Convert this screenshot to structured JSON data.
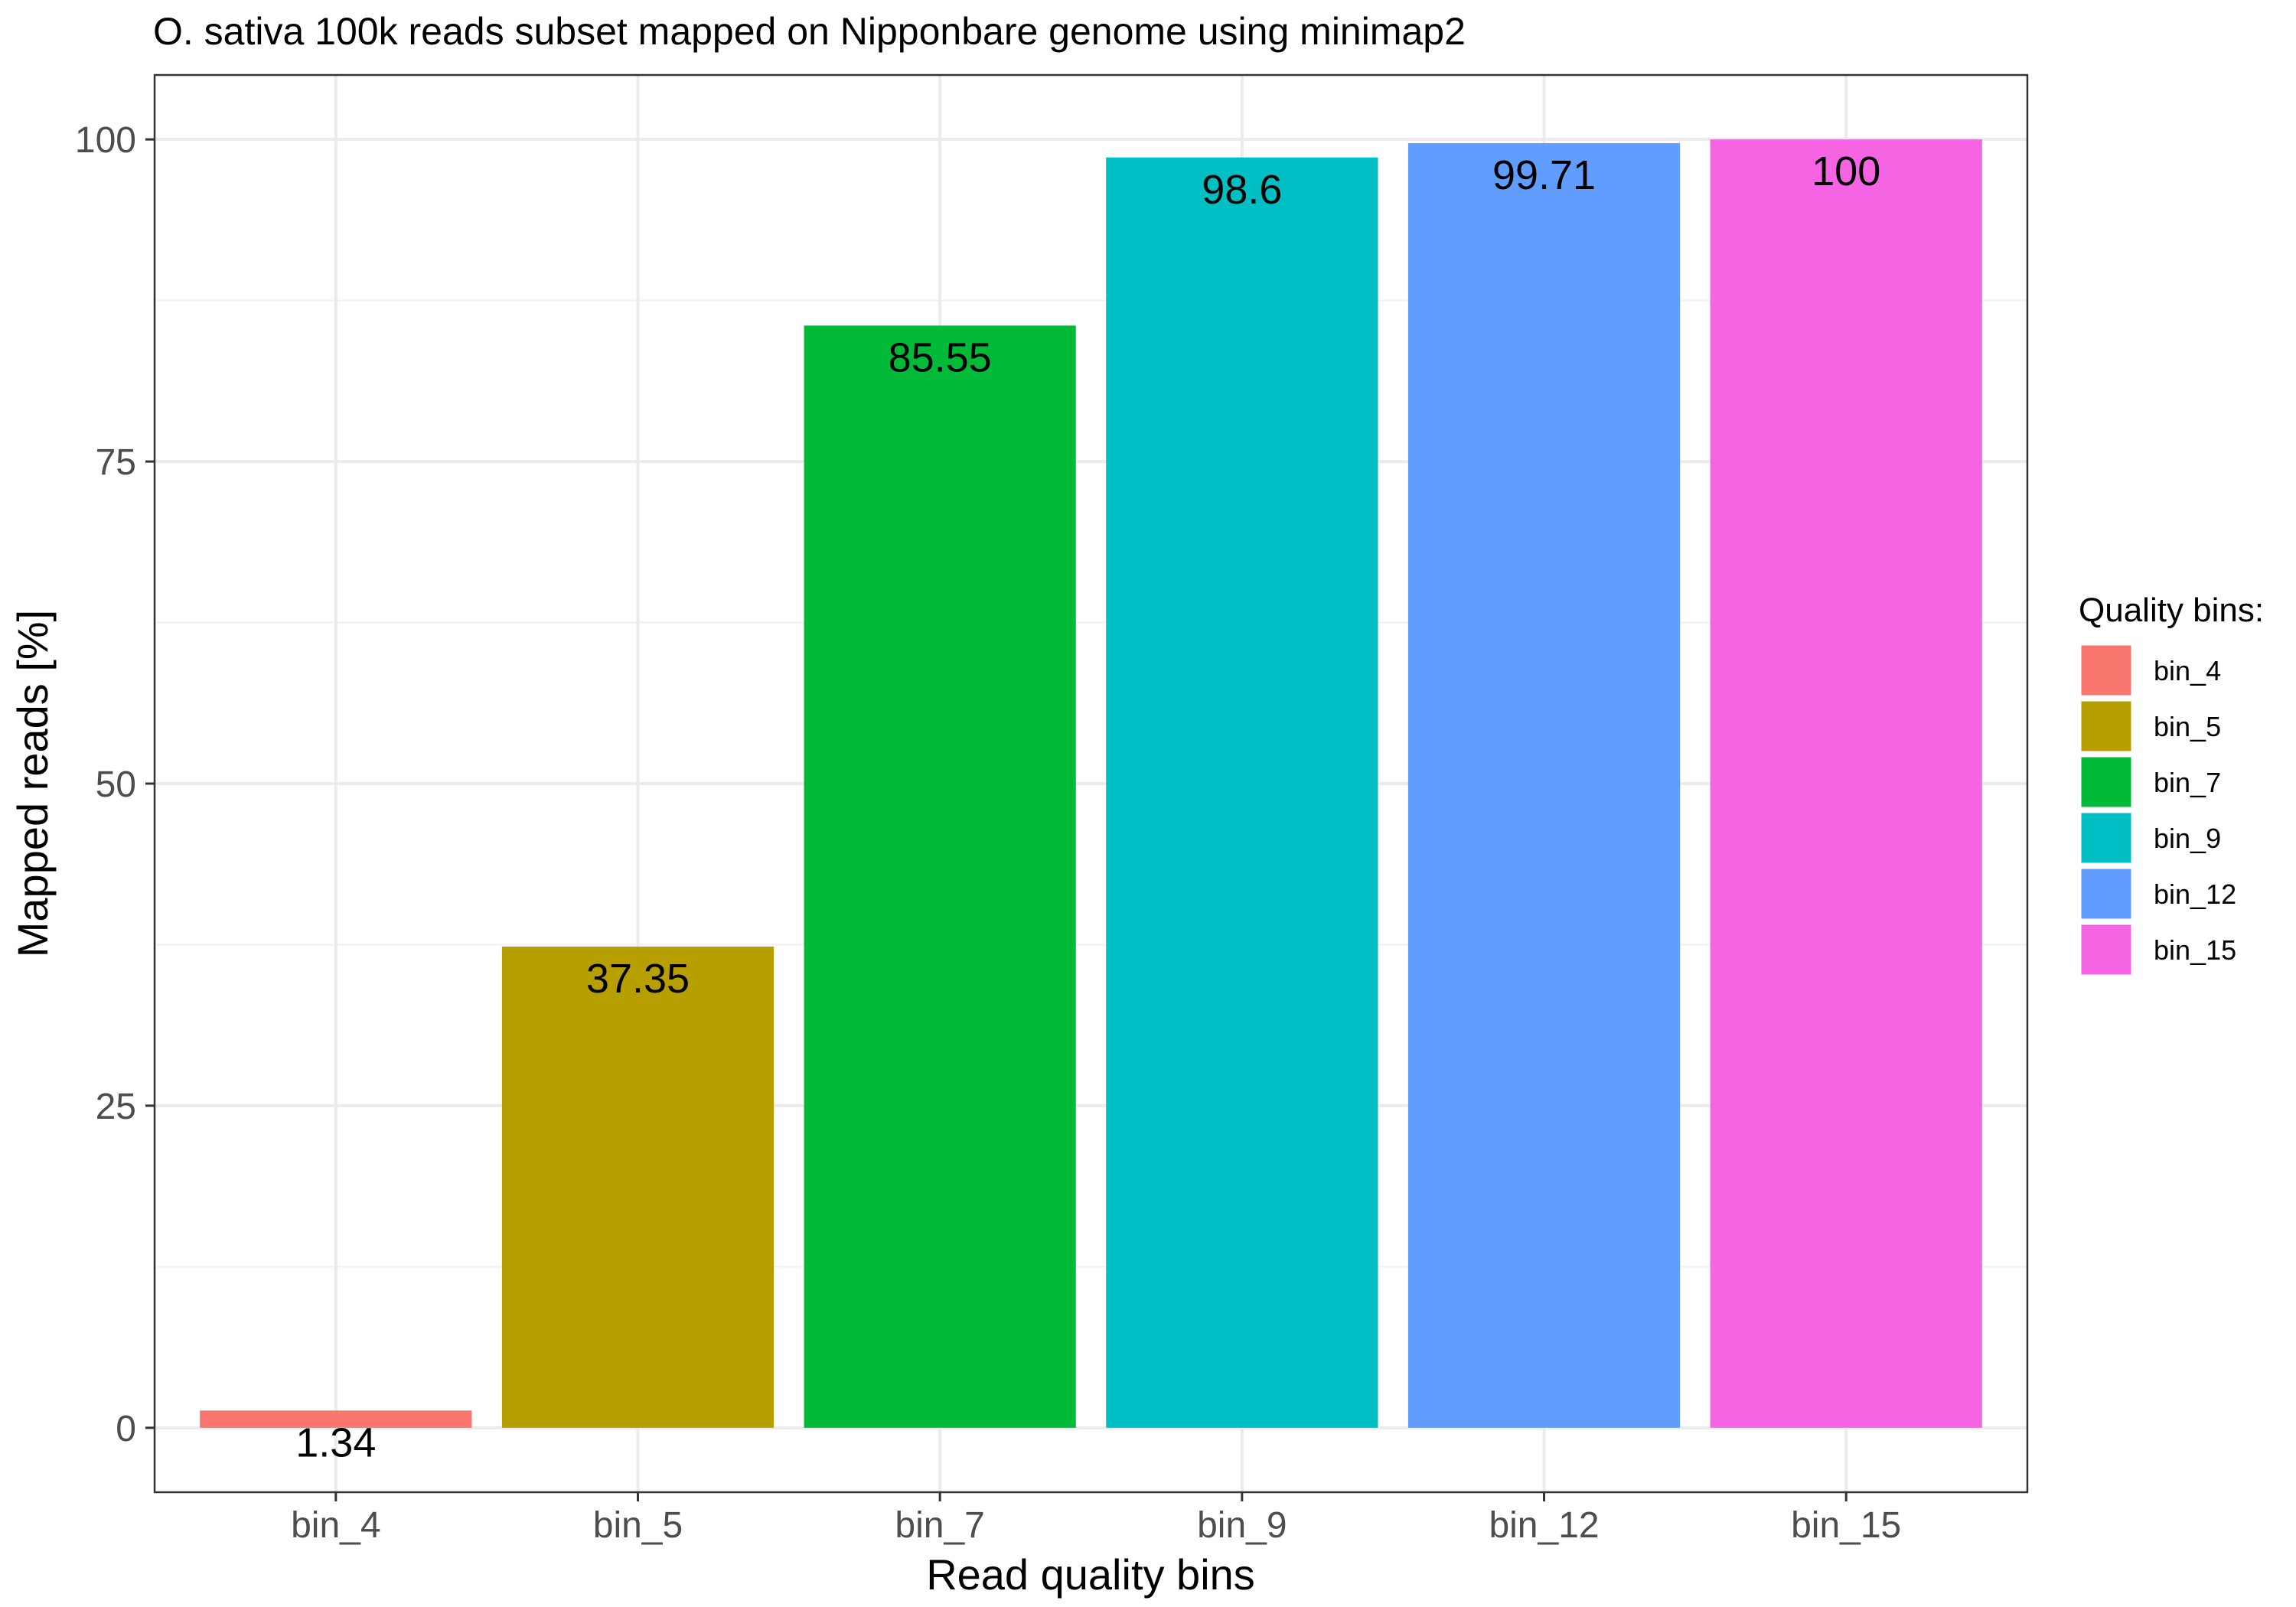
{
  "chart_data": {
    "type": "bar",
    "title": "O. sativa 100k reads subset mapped on Nipponbare genome using minimap2",
    "xlabel": "Read quality bins",
    "ylabel": "Mapped reads [%]",
    "categories": [
      "bin_4",
      "bin_5",
      "bin_7",
      "bin_9",
      "bin_12",
      "bin_15"
    ],
    "values": [
      1.34,
      37.35,
      85.55,
      98.6,
      99.71,
      100
    ],
    "data_labels": [
      "1.34",
      "37.35",
      "85.55",
      "98.6",
      "99.71",
      "100"
    ],
    "colors": [
      "#F8766D",
      "#B79F00",
      "#00BA38",
      "#00BFC4",
      "#619CFF",
      "#F564E3"
    ],
    "ylim": [
      -5,
      105
    ],
    "yticks": [
      0,
      25,
      50,
      75,
      100
    ],
    "ytick_labels": [
      "0",
      "25",
      "50",
      "75",
      "100"
    ],
    "grid": true,
    "legend": {
      "title": "Quality bins:",
      "position": "right",
      "entries": [
        "bin_4",
        "bin_5",
        "bin_7",
        "bin_9",
        "bin_12",
        "bin_15"
      ]
    }
  }
}
